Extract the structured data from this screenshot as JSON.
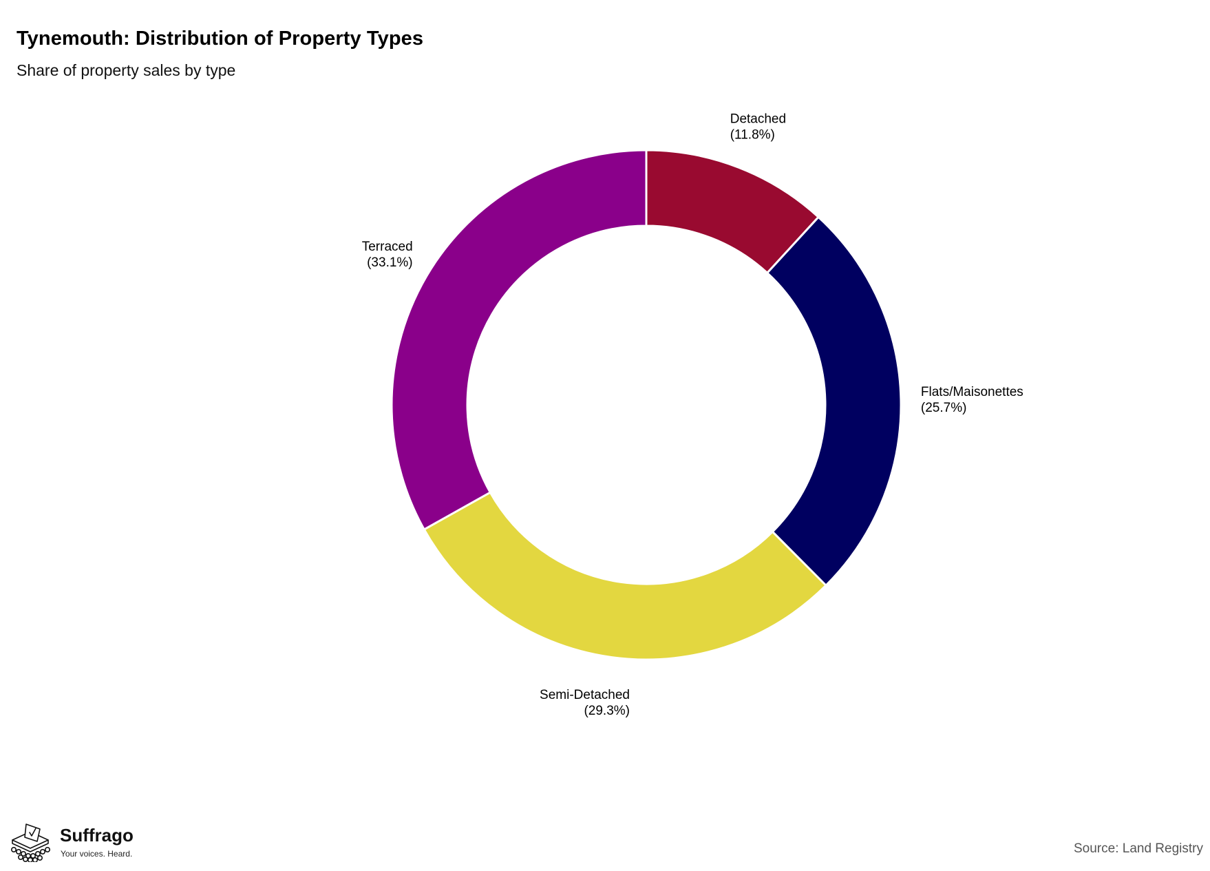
{
  "header": {
    "title": "Tynemouth: Distribution of Property Types",
    "subtitle": "Share of property sales by type"
  },
  "chart_data": {
    "type": "pie",
    "variant": "donut",
    "title": "Tynemouth: Distribution of Property Types",
    "subtitle": "Share of property sales by type",
    "unit": "%",
    "slices": [
      {
        "label": "Detached",
        "value_label": "(11.8%)",
        "value": 11.8,
        "color": "#990A30"
      },
      {
        "label": "Flats/Maisonettes",
        "value_label": "(25.7%)",
        "value": 25.7,
        "color": "#000060"
      },
      {
        "label": "Semi-Detached",
        "value_label": "(29.3%)",
        "value": 29.3,
        "color": "#E3D740"
      },
      {
        "label": "Terraced",
        "value_label": "(33.1%)",
        "value": 33.1,
        "color": "#8A008A"
      }
    ],
    "start": "12 o'clock",
    "direction": "clockwise",
    "legend": "none",
    "grid": false
  },
  "footer": {
    "brand_name": "Suffrago",
    "brand_tagline": "Your voices. Heard.",
    "logo_icon": "ballot-box-icon",
    "source": "Source: Land Registry"
  }
}
